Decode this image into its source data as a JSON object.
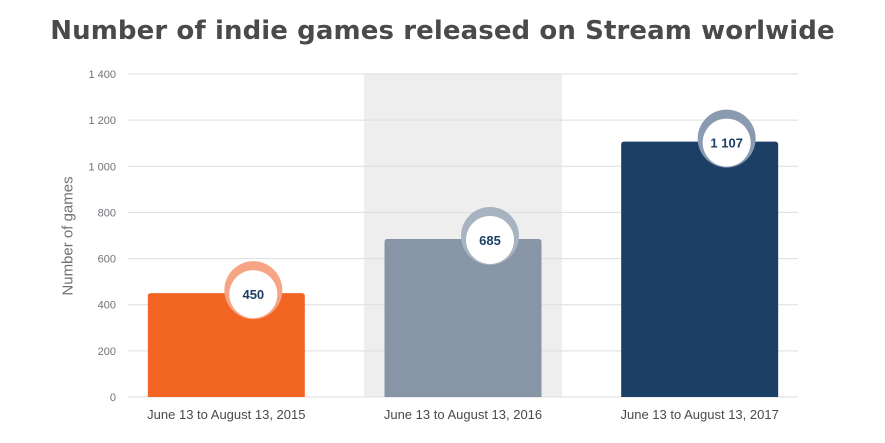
{
  "chart_data": {
    "type": "bar",
    "title": "Number of indie games released on Stream worlwide",
    "xlabel": "",
    "ylabel": "Number of games",
    "categories": [
      "June 13 to August 13, 2015",
      "June 13 to August 13, 2016",
      "June 13 to August 13, 2017"
    ],
    "series": [
      {
        "values": [
          450,
          685,
          1107
        ]
      }
    ],
    "value_labels": [
      "450",
      "685",
      "1 107"
    ],
    "ylim": [
      0,
      1400
    ],
    "yticks": [
      0,
      200,
      400,
      600,
      800,
      1000,
      1200,
      1400
    ],
    "ytick_labels": [
      "0",
      "200",
      "400",
      "600",
      "800",
      "1 000",
      "1 200",
      "1 400"
    ],
    "grid": true,
    "legend": "none",
    "highlighted_category_index": 1,
    "colors": {
      "bars": [
        "#f26522",
        "#8795a6",
        "#1c3f66"
      ],
      "rings": [
        "#f5a586",
        "#a8b3c1",
        "#8a9ab0"
      ],
      "highlight_band": "#eeeeee",
      "grid": "#dddddd",
      "value_text": "#1c3f66"
    }
  }
}
